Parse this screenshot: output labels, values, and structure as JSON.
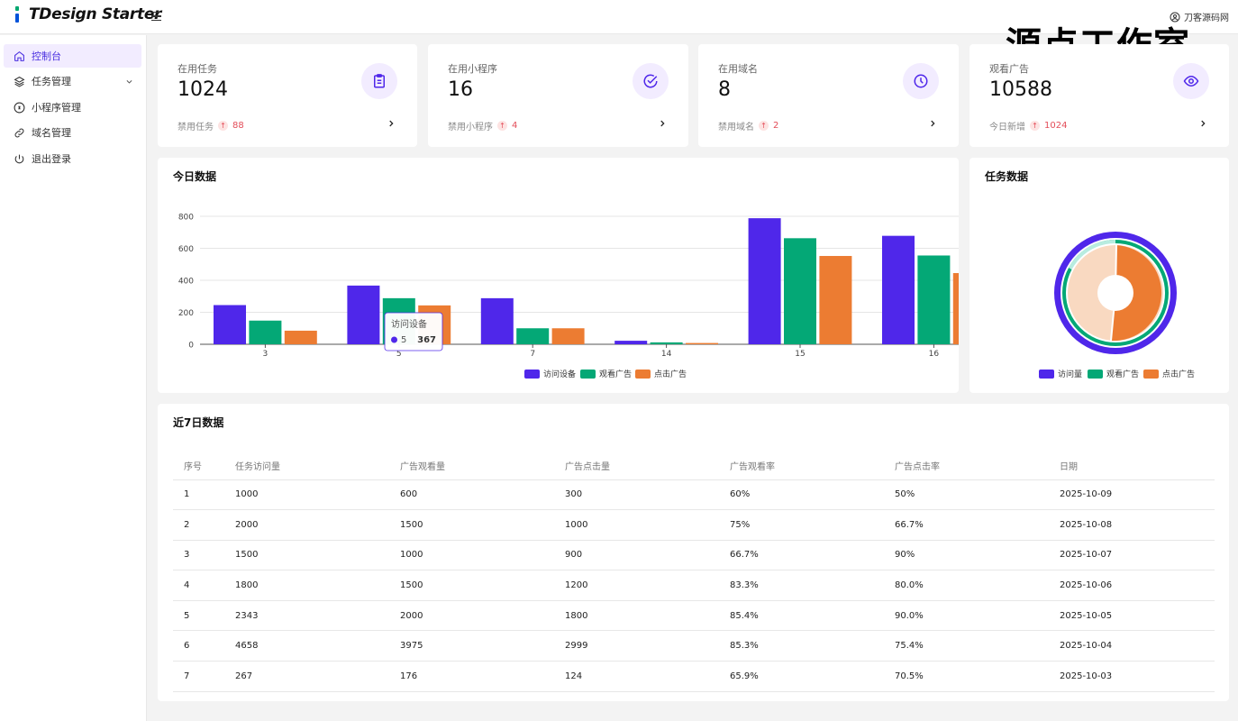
{
  "header": {
    "brand": "TDesign Starter",
    "user_label": "刀客源码网",
    "watermark": "源点工作室"
  },
  "sidebar": {
    "items": [
      {
        "label": "控制台",
        "icon": "home-icon",
        "active": true
      },
      {
        "label": "任务管理",
        "icon": "layers-icon",
        "expandable": true
      },
      {
        "label": "小程序管理",
        "icon": "miniapp-icon"
      },
      {
        "label": "域名管理",
        "icon": "link-icon"
      },
      {
        "label": "退出登录",
        "icon": "power-icon"
      }
    ]
  },
  "stats": [
    {
      "label": "在用任务",
      "value": "1024",
      "foot_label": "禁用任务",
      "foot_value": "88",
      "icon": "clipboard-icon"
    },
    {
      "label": "在用小程序",
      "value": "16",
      "foot_label": "禁用小程序",
      "foot_value": "4",
      "icon": "check-circle-icon"
    },
    {
      "label": "在用域名",
      "value": "8",
      "foot_label": "禁用域名",
      "foot_value": "2",
      "icon": "clock-icon"
    },
    {
      "label": "观看广告",
      "value": "10588",
      "foot_label": "今日新增",
      "foot_value": "1024",
      "icon": "eye-icon"
    }
  ],
  "today_chart": {
    "title": "今日数据",
    "tooltip": {
      "title": "访问设备",
      "x": "5",
      "value": "367"
    }
  },
  "task_chart": {
    "title": "任务数据"
  },
  "table": {
    "title": "近7日数据",
    "headers": [
      "序号",
      "任务访问量",
      "广告观看量",
      "广告点击量",
      "广告观看率",
      "广告点击率",
      "日期"
    ],
    "rows": [
      [
        "1",
        "1000",
        "600",
        "300",
        "60%",
        "50%",
        "2025-10-09"
      ],
      [
        "2",
        "2000",
        "1500",
        "1000",
        "75%",
        "66.7%",
        "2025-10-08"
      ],
      [
        "3",
        "1500",
        "1000",
        "900",
        "66.7%",
        "90%",
        "2025-10-07"
      ],
      [
        "4",
        "1800",
        "1500",
        "1200",
        "83.3%",
        "80.0%",
        "2025-10-06"
      ],
      [
        "5",
        "2343",
        "2000",
        "1800",
        "85.4%",
        "90.0%",
        "2025-10-05"
      ],
      [
        "6",
        "4658",
        "3975",
        "2999",
        "85.3%",
        "75.4%",
        "2025-10-04"
      ],
      [
        "7",
        "267",
        "176",
        "124",
        "65.9%",
        "70.5%",
        "2025-10-03"
      ]
    ]
  },
  "colors": {
    "accent": "#4f27ea",
    "series1": "#4f27ea",
    "series2": "#04a876",
    "series3": "#ec7c32",
    "up": "#e34d59"
  },
  "chart_data": [
    {
      "type": "bar",
      "categories": [
        "3",
        "5",
        "7",
        "14",
        "15",
        "16"
      ],
      "series": [
        {
          "name": "访问设备",
          "values": [
            245,
            367,
            288,
            22,
            788,
            678
          ]
        },
        {
          "name": "观看广告",
          "values": [
            148,
            288,
            100,
            12,
            663,
            555
          ]
        },
        {
          "name": "点击广告",
          "values": [
            85,
            243,
            100,
            8,
            552,
            445
          ]
        }
      ],
      "ylim": [
        0,
        800
      ],
      "yticks": [
        0,
        200,
        400,
        600,
        800
      ],
      "grid": true,
      "legend": "bottom"
    },
    {
      "type": "pie",
      "series": [
        {
          "name": "访问量",
          "value": 1
        },
        {
          "name": "观看广告",
          "value": 1
        },
        {
          "name": "点击广告",
          "value": 1
        }
      ],
      "legend": "bottom"
    }
  ]
}
